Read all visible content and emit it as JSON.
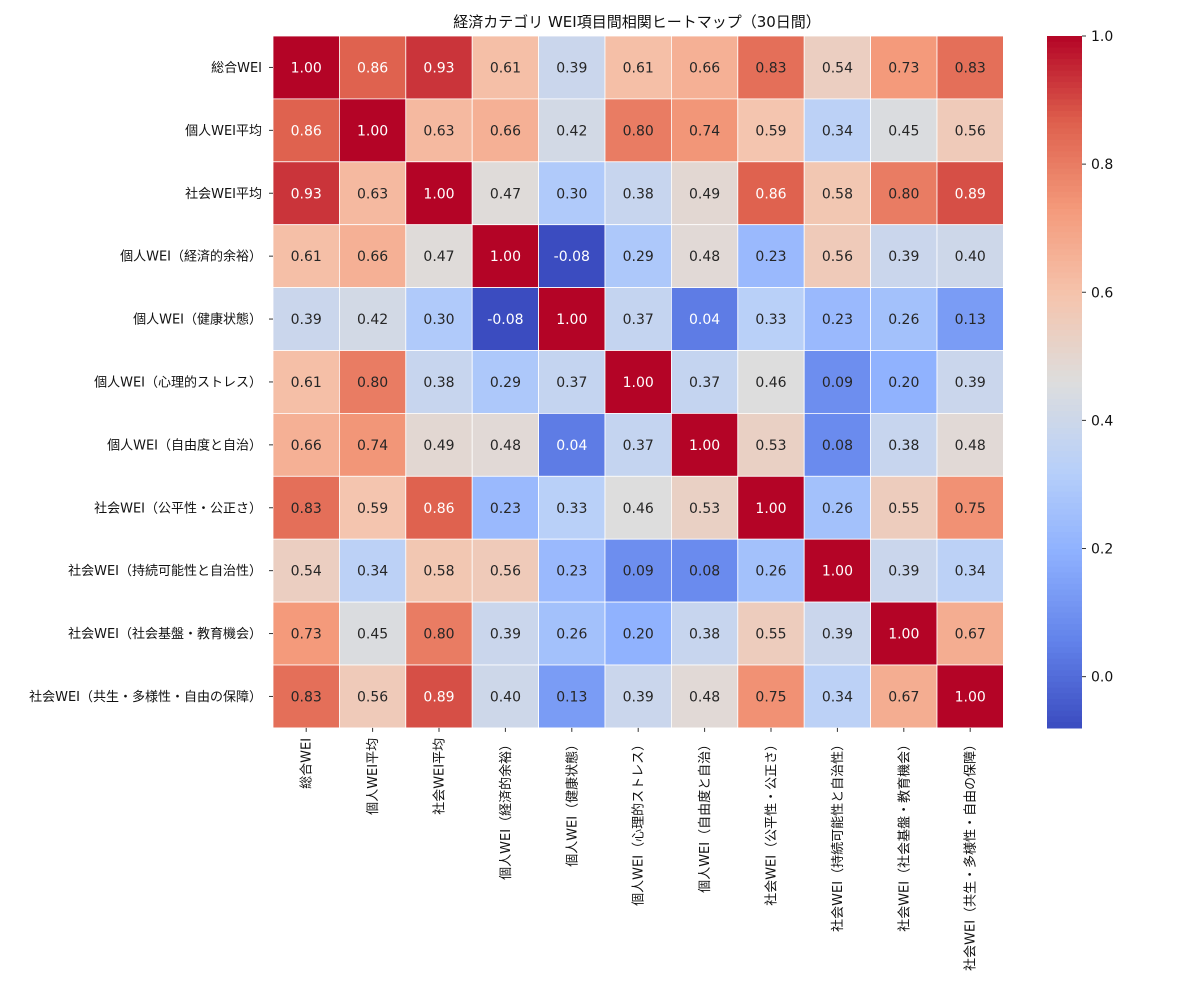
{
  "chart_data": {
    "type": "heatmap",
    "title": "経済カテゴリ WEI項目間相関ヒートマップ（30日間）",
    "xlabel": "",
    "ylabel": "",
    "labels": [
      "総合WEI",
      "個人WEI平均",
      "社会WEI平均",
      "個人WEI（経済的余裕）",
      "個人WEI（健康状態）",
      "個人WEI（心理的ストレス）",
      "個人WEI（自由度と自治）",
      "社会WEI（公平性・公正さ）",
      "社会WEI（持続可能性と自治性）",
      "社会WEI（社会基盤・教育機会）",
      "社会WEI（共生・多様性・自由の保障）"
    ],
    "matrix": [
      [
        1.0,
        0.86,
        0.93,
        0.61,
        0.39,
        0.61,
        0.66,
        0.83,
        0.54,
        0.73,
        0.83
      ],
      [
        0.86,
        1.0,
        0.63,
        0.66,
        0.42,
        0.8,
        0.74,
        0.59,
        0.34,
        0.45,
        0.56
      ],
      [
        0.93,
        0.63,
        1.0,
        0.47,
        0.3,
        0.38,
        0.49,
        0.86,
        0.58,
        0.8,
        0.89
      ],
      [
        0.61,
        0.66,
        0.47,
        1.0,
        -0.08,
        0.29,
        0.48,
        0.23,
        0.56,
        0.39,
        0.4
      ],
      [
        0.39,
        0.42,
        0.3,
        -0.08,
        1.0,
        0.37,
        0.04,
        0.33,
        0.23,
        0.26,
        0.13
      ],
      [
        0.61,
        0.8,
        0.38,
        0.29,
        0.37,
        1.0,
        0.37,
        0.46,
        0.09,
        0.2,
        0.39
      ],
      [
        0.66,
        0.74,
        0.49,
        0.48,
        0.04,
        0.37,
        1.0,
        0.53,
        0.08,
        0.38,
        0.48
      ],
      [
        0.83,
        0.59,
        0.86,
        0.23,
        0.33,
        0.46,
        0.53,
        1.0,
        0.26,
        0.55,
        0.75
      ],
      [
        0.54,
        0.34,
        0.58,
        0.56,
        0.23,
        0.09,
        0.08,
        0.26,
        1.0,
        0.39,
        0.34
      ],
      [
        0.73,
        0.45,
        0.8,
        0.39,
        0.26,
        0.2,
        0.38,
        0.55,
        0.39,
        1.0,
        0.67
      ],
      [
        0.83,
        0.56,
        0.89,
        0.4,
        0.13,
        0.39,
        0.48,
        0.75,
        0.34,
        0.67,
        1.0
      ]
    ],
    "colormap": "coolwarm",
    "vmin": -0.08,
    "vmax": 1.0,
    "colorbar_ticks": [
      "0.0",
      "0.2",
      "0.4",
      "0.6",
      "0.8",
      "1.0"
    ],
    "annotated": true,
    "legend_position": "right"
  }
}
